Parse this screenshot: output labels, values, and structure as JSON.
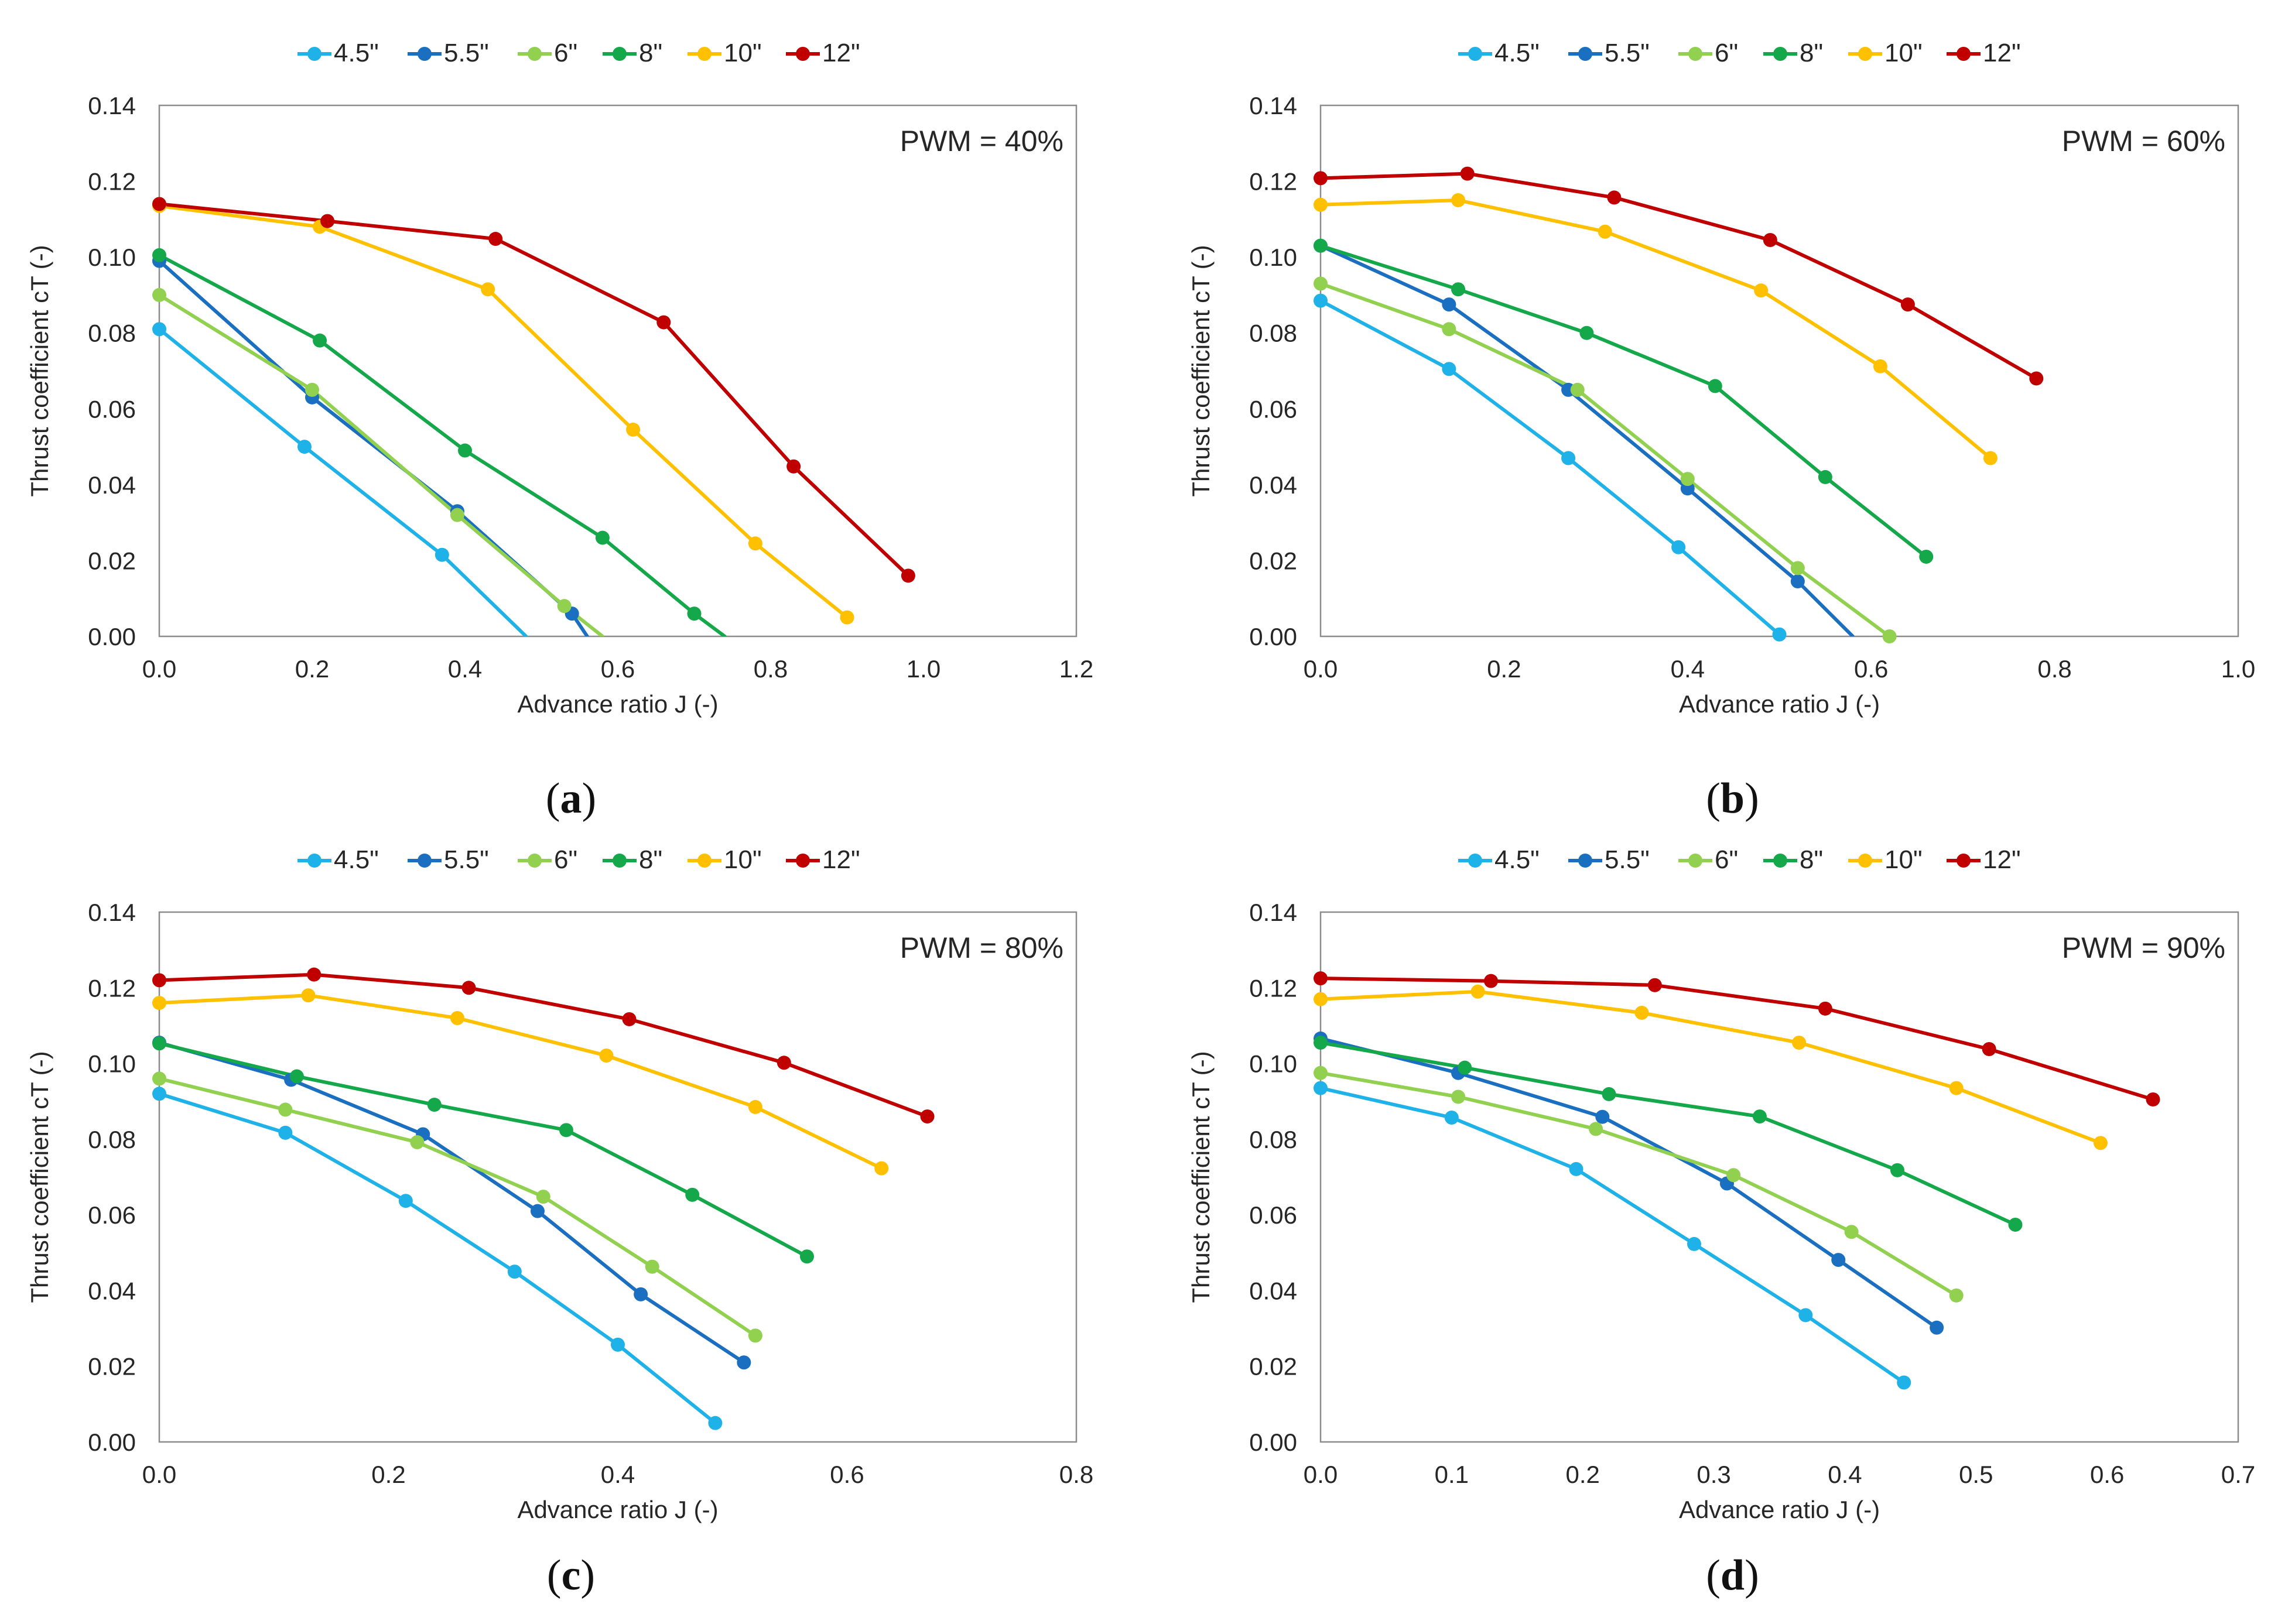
{
  "figure": {
    "series_colors": {
      "4.5\"": "#1FB2E8",
      "5.5\"": "#1A6FC0",
      "6\"": "#92D050",
      "8\"": "#14A84B",
      "10\"": "#FFC000",
      "12\"": "#C00000"
    }
  },
  "chart_data": [
    {
      "type": "line",
      "panel_label": "(a)",
      "caption_letter": "a",
      "annotation": "PWM = 40%",
      "xlabel": "Advance ratio J (-)",
      "ylabel": "Thrust coefficient cT (-)",
      "xlim": [
        0,
        1.2
      ],
      "ylim": [
        0,
        0.14
      ],
      "xticks": [
        "0.0",
        "0.2",
        "0.4",
        "0.6",
        "0.8",
        "1.0",
        "1.2"
      ],
      "yticks": [
        "0.00",
        "0.02",
        "0.04",
        "0.06",
        "0.08",
        "0.10",
        "0.12",
        "0.14"
      ],
      "legend_position": "top",
      "grid": false,
      "series": [
        {
          "name": "4.5\"",
          "x": [
            0.0,
            0.19,
            0.37
          ],
          "y": [
            0.081,
            0.05,
            0.0215
          ],
          "trend_to": [
            0.48,
            0.0
          ]
        },
        {
          "name": "5.5\"",
          "x": [
            0.0,
            0.2,
            0.39,
            0.54
          ],
          "y": [
            0.099,
            0.063,
            0.033,
            0.006
          ],
          "trend_to": [
            0.56,
            0.0
          ]
        },
        {
          "name": "6\"",
          "x": [
            0.0,
            0.2,
            0.39,
            0.53
          ],
          "y": [
            0.09,
            0.065,
            0.032,
            0.008
          ],
          "trend_to": [
            0.58,
            0.0
          ]
        },
        {
          "name": "8\"",
          "x": [
            0.0,
            0.21,
            0.4,
            0.58,
            0.7
          ],
          "y": [
            0.1005,
            0.078,
            0.049,
            0.026,
            0.006
          ],
          "trend_to": [
            0.74,
            0.0
          ]
        },
        {
          "name": "10\"",
          "x": [
            0.0,
            0.21,
            0.43,
            0.62,
            0.78,
            0.9
          ],
          "y": [
            0.1135,
            0.108,
            0.0915,
            0.0545,
            0.0245,
            0.005
          ]
        },
        {
          "name": "12\"",
          "x": [
            0.0,
            0.22,
            0.44,
            0.66,
            0.83,
            0.98
          ],
          "y": [
            0.114,
            0.1095,
            0.1048,
            0.0828,
            0.0448,
            0.016
          ]
        }
      ]
    },
    {
      "type": "line",
      "panel_label": "(b)",
      "caption_letter": "b",
      "annotation": "PWM = 60%",
      "xlabel": "Advance ratio J (-)",
      "ylabel": "Thrust coefficient cT (-)",
      "xlim": [
        0,
        1.0
      ],
      "ylim": [
        0,
        0.14
      ],
      "xticks": [
        "0.0",
        "0.2",
        "0.4",
        "0.6",
        "0.8",
        "1.0"
      ],
      "yticks": [
        "0.00",
        "0.02",
        "0.04",
        "0.06",
        "0.08",
        "0.10",
        "0.12",
        "0.14"
      ],
      "legend_position": "top",
      "grid": false,
      "series": [
        {
          "name": "4.5\"",
          "x": [
            0.0,
            0.14,
            0.27,
            0.39,
            0.5
          ],
          "y": [
            0.0885,
            0.0705,
            0.047,
            0.0235,
            0.0005
          ]
        },
        {
          "name": "5.5\"",
          "x": [
            0.0,
            0.14,
            0.27,
            0.4,
            0.52
          ],
          "y": [
            0.103,
            0.0875,
            0.065,
            0.039,
            0.0145
          ],
          "trend_to": [
            0.58,
            0.0
          ]
        },
        {
          "name": "6\"",
          "x": [
            0.0,
            0.14,
            0.28,
            0.4,
            0.52,
            0.62
          ],
          "y": [
            0.093,
            0.081,
            0.065,
            0.0415,
            0.018,
            0.0
          ]
        },
        {
          "name": "8\"",
          "x": [
            0.0,
            0.15,
            0.29,
            0.43,
            0.55,
            0.66
          ],
          "y": [
            0.103,
            0.0915,
            0.08,
            0.066,
            0.042,
            0.021
          ]
        },
        {
          "name": "10\"",
          "x": [
            0.0,
            0.15,
            0.31,
            0.48,
            0.61,
            0.73
          ],
          "y": [
            0.1138,
            0.115,
            0.1067,
            0.0912,
            0.0712,
            0.047
          ]
        },
        {
          "name": "12\"",
          "x": [
            0.0,
            0.16,
            0.32,
            0.49,
            0.64,
            0.78
          ],
          "y": [
            0.1208,
            0.122,
            0.1157,
            0.1045,
            0.0875,
            0.068
          ]
        }
      ]
    },
    {
      "type": "line",
      "panel_label": "(c)",
      "caption_letter": "c",
      "annotation": "PWM = 80%",
      "xlabel": "Advance ratio J (-)",
      "ylabel": "Thrust coefficient cT (-)",
      "xlim": [
        0,
        0.8
      ],
      "ylim": [
        0,
        0.14
      ],
      "xticks": [
        "0.0",
        "0.2",
        "0.4",
        "0.6",
        "0.8"
      ],
      "yticks": [
        "0.00",
        "0.02",
        "0.04",
        "0.06",
        "0.08",
        "0.10",
        "0.12",
        "0.14"
      ],
      "legend_position": "top",
      "grid": false,
      "series": [
        {
          "name": "4.5\"",
          "x": [
            0.0,
            0.11,
            0.215,
            0.31,
            0.4,
            0.485
          ],
          "y": [
            0.092,
            0.0817,
            0.0637,
            0.045,
            0.0257,
            0.005
          ]
        },
        {
          "name": "5.5\"",
          "x": [
            0.0,
            0.115,
            0.23,
            0.33,
            0.42,
            0.51
          ],
          "y": [
            0.1055,
            0.0957,
            0.0813,
            0.061,
            0.039,
            0.021
          ]
        },
        {
          "name": "6\"",
          "x": [
            0.0,
            0.11,
            0.225,
            0.335,
            0.43,
            0.52
          ],
          "y": [
            0.096,
            0.0878,
            0.0792,
            0.0648,
            0.0463,
            0.0281
          ]
        },
        {
          "name": "8\"",
          "x": [
            0.0,
            0.12,
            0.24,
            0.355,
            0.465,
            0.565
          ],
          "y": [
            0.1053,
            0.0966,
            0.0891,
            0.0824,
            0.0653,
            0.049
          ]
        },
        {
          "name": "10\"",
          "x": [
            0.0,
            0.13,
            0.26,
            0.39,
            0.52,
            0.63
          ],
          "y": [
            0.116,
            0.118,
            0.112,
            0.1021,
            0.0885,
            0.0723
          ]
        },
        {
          "name": "12\"",
          "x": [
            0.0,
            0.135,
            0.27,
            0.41,
            0.545,
            0.67
          ],
          "y": [
            0.122,
            0.1235,
            0.12,
            0.1117,
            0.1002,
            0.086
          ]
        }
      ]
    },
    {
      "type": "line",
      "panel_label": "(d)",
      "caption_letter": "d",
      "annotation": "PWM = 90%",
      "xlabel": "Advance ratio J (-)",
      "ylabel": "Thrust coefficient cT (-)",
      "xlim": [
        0,
        0.7
      ],
      "ylim": [
        0,
        0.14
      ],
      "xticks": [
        "0.0",
        "0.1",
        "0.2",
        "0.3",
        "0.4",
        "0.5",
        "0.6",
        "0.7"
      ],
      "yticks": [
        "0.00",
        "0.02",
        "0.04",
        "0.06",
        "0.08",
        "0.10",
        "0.12",
        "0.14"
      ],
      "legend_position": "top",
      "grid": false,
      "series": [
        {
          "name": "4.5\"",
          "x": [
            0.0,
            0.1,
            0.195,
            0.285,
            0.37,
            0.445
          ],
          "y": [
            0.0935,
            0.0857,
            0.0721,
            0.0523,
            0.0335,
            0.0157
          ]
        },
        {
          "name": "5.5\"",
          "x": [
            0.0,
            0.105,
            0.215,
            0.31,
            0.395,
            0.47
          ],
          "y": [
            0.1066,
            0.0975,
            0.0859,
            0.0683,
            0.0481,
            0.0302
          ]
        },
        {
          "name": "6\"",
          "x": [
            0.0,
            0.105,
            0.21,
            0.315,
            0.405,
            0.485
          ],
          "y": [
            0.0975,
            0.0912,
            0.0827,
            0.0705,
            0.0555,
            0.0387
          ]
        },
        {
          "name": "8\"",
          "x": [
            0.0,
            0.11,
            0.22,
            0.335,
            0.44,
            0.53
          ],
          "y": [
            0.1055,
            0.0989,
            0.0919,
            0.086,
            0.0718,
            0.0574
          ]
        },
        {
          "name": "10\"",
          "x": [
            0.0,
            0.12,
            0.245,
            0.365,
            0.485,
            0.595
          ],
          "y": [
            0.117,
            0.119,
            0.1134,
            0.1055,
            0.0935,
            0.079
          ]
        },
        {
          "name": "12\"",
          "x": [
            0.0,
            0.13,
            0.255,
            0.385,
            0.51,
            0.635
          ],
          "y": [
            0.1225,
            0.1218,
            0.1207,
            0.1145,
            0.1038,
            0.0905
          ]
        }
      ]
    }
  ]
}
